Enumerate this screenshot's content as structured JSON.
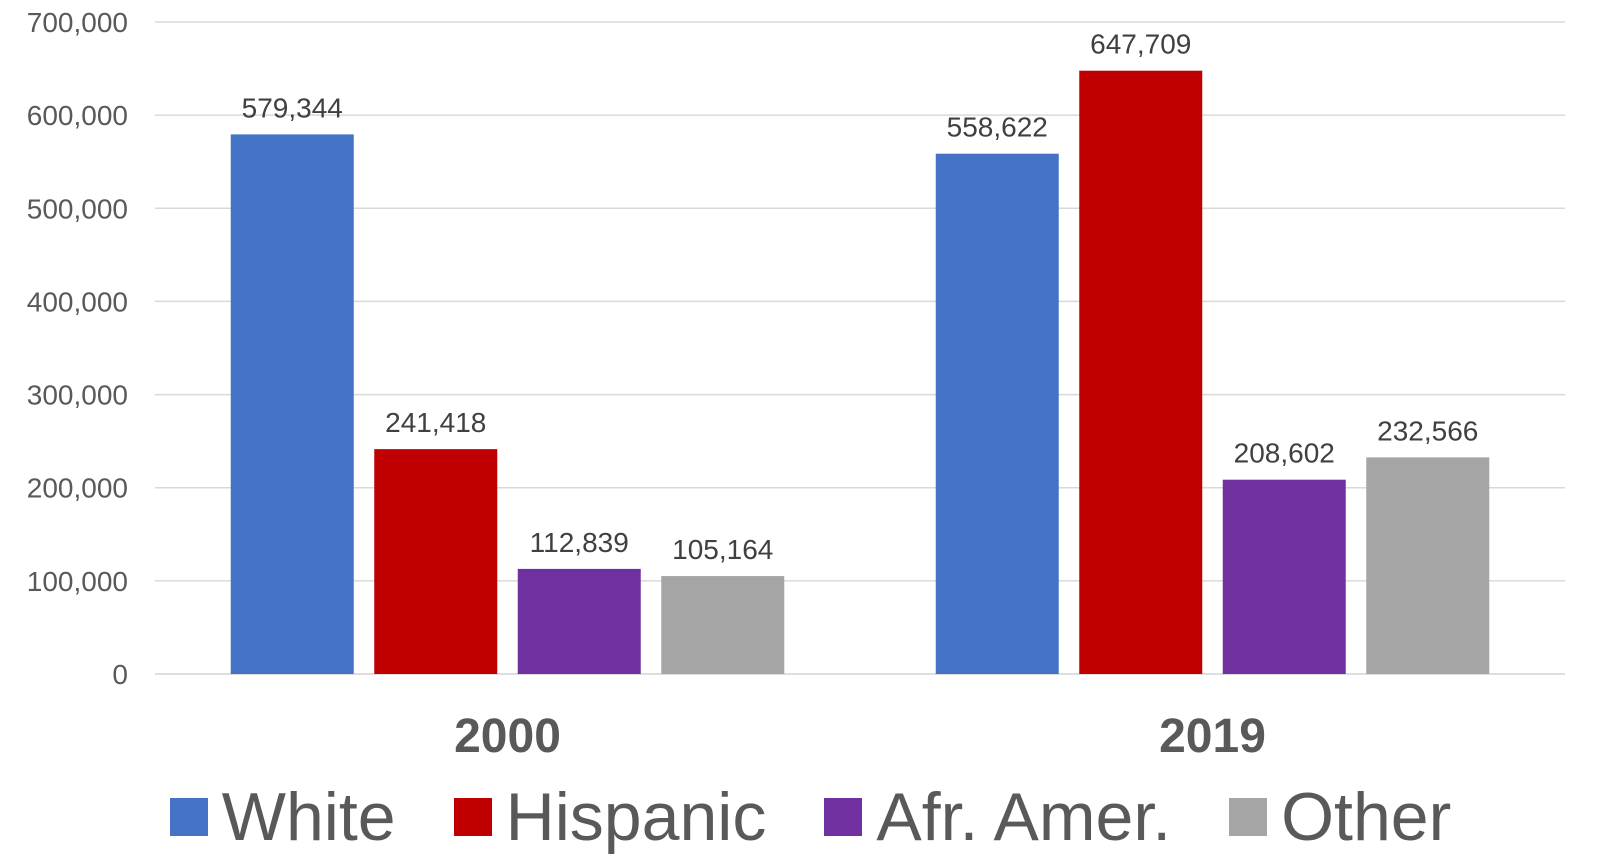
{
  "chart_data": {
    "type": "bar",
    "categories": [
      "2000",
      "2019"
    ],
    "series": [
      {
        "name": "White",
        "color": "#4472C4",
        "values": [
          579344,
          558622
        ],
        "labels": [
          "579,344",
          "558,622"
        ]
      },
      {
        "name": "Hispanic",
        "color": "#C00000",
        "values": [
          241418,
          647709
        ],
        "labels": [
          "241,418",
          "647,709"
        ]
      },
      {
        "name": "Afr. Amer.",
        "color": "#7030A0",
        "values": [
          112839,
          208602
        ],
        "labels": [
          "112,839",
          "208,602"
        ]
      },
      {
        "name": "Other",
        "color": "#A5A5A5",
        "values": [
          105164,
          232566
        ],
        "labels": [
          "105,164",
          "232,566"
        ]
      }
    ],
    "ylim": [
      0,
      700000
    ],
    "y_ticks": [
      0,
      100000,
      200000,
      300000,
      400000,
      500000,
      600000,
      700000
    ],
    "y_tick_labels": [
      "0",
      "100,000",
      "200,000",
      "300,000",
      "400,000",
      "500,000",
      "600,000",
      "700,000"
    ],
    "title": "",
    "xlabel": "",
    "ylabel": "",
    "grid": true,
    "legend_position": "bottom",
    "gridline_color": "#D9D9D9"
  }
}
